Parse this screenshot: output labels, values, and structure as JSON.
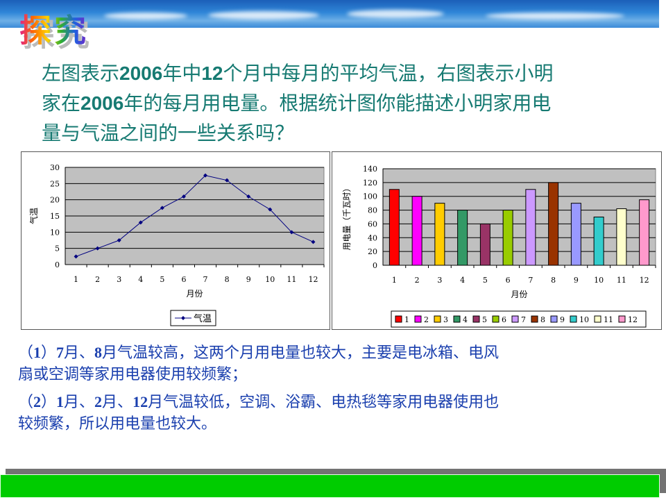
{
  "header": {
    "logo_text": "探究"
  },
  "intro": {
    "lines": [
      [
        {
          "t": "左图表示"
        },
        {
          "t": "2006",
          "b": true
        },
        {
          "t": "年中"
        },
        {
          "t": "12",
          "b": true
        },
        {
          "t": "个月中每月的平均气温，右图表示小明"
        }
      ],
      [
        {
          "t": "家在"
        },
        {
          "t": "2006",
          "b": true
        },
        {
          "t": "年的每月用电量。根据统计图你能描述小明家用电"
        }
      ],
      [
        {
          "t": "量与气温之间的一些关系吗？"
        }
      ]
    ]
  },
  "answers": [
    [
      [
        {
          "t": "（"
        },
        {
          "t": "1",
          "b": true
        },
        {
          "t": "）"
        },
        {
          "t": "7",
          "b": true
        },
        {
          "t": "月、"
        },
        {
          "t": "8",
          "b": true
        },
        {
          "t": "月气温较高，这两个月用电量也较大，主要是电冰箱、电风"
        }
      ],
      [
        {
          "t": "扇或空调等家用电器使用较频繁；"
        }
      ]
    ],
    [
      [
        {
          "t": "（"
        },
        {
          "t": "2",
          "b": true
        },
        {
          "t": "）"
        },
        {
          "t": "1",
          "b": true
        },
        {
          "t": "月、"
        },
        {
          "t": "2",
          "b": true
        },
        {
          "t": "月、"
        },
        {
          "t": "12",
          "b": true
        },
        {
          "t": "月气温较低，空调、浴霸、电热毯等家用电器使用也"
        }
      ],
      [
        {
          "t": " 较频繁，所以用电量也较大。"
        }
      ]
    ]
  ],
  "chart_data": [
    {
      "type": "line",
      "categories": [
        "1",
        "2",
        "3",
        "4",
        "5",
        "6",
        "7",
        "8",
        "9",
        "10",
        "11",
        "12"
      ],
      "series": [
        {
          "name": "气温",
          "values": [
            2.5,
            5,
            7.5,
            13,
            17.5,
            21,
            27.5,
            26,
            21,
            17,
            10,
            7
          ],
          "color": "#000080"
        }
      ],
      "xlabel": "月份",
      "ylabel": "气温",
      "ylim": [
        0,
        30
      ],
      "yticks": [
        0,
        5,
        10,
        15,
        20,
        25,
        30
      ],
      "grid": true,
      "plot_background": "#c0c0c0",
      "legend": "bottom"
    },
    {
      "type": "bar",
      "categories": [
        "1",
        "2",
        "3",
        "4",
        "5",
        "6",
        "7",
        "8",
        "9",
        "10",
        "11",
        "12"
      ],
      "values": [
        110,
        100,
        90,
        80,
        60,
        80,
        110,
        120,
        90,
        70,
        82,
        95
      ],
      "colors": [
        "#ff0000",
        "#ff00ff",
        "#ffcc00",
        "#339966",
        "#993366",
        "#99cc00",
        "#cc99ff",
        "#993300",
        "#9999ff",
        "#33cccc",
        "#ffffcc",
        "#ff99cc"
      ],
      "legend_entries": [
        "1",
        "2",
        "3",
        "4",
        "5",
        "6",
        "7",
        "8",
        "9",
        "10",
        "11",
        "12"
      ],
      "xlabel": "月份",
      "ylabel": "用电量（千瓦时）",
      "ylim": [
        0,
        140
      ],
      "yticks": [
        0,
        20,
        40,
        60,
        80,
        100,
        120,
        140
      ],
      "grid": true,
      "plot_background": "#c0c0c0",
      "legend": "bottom"
    }
  ]
}
